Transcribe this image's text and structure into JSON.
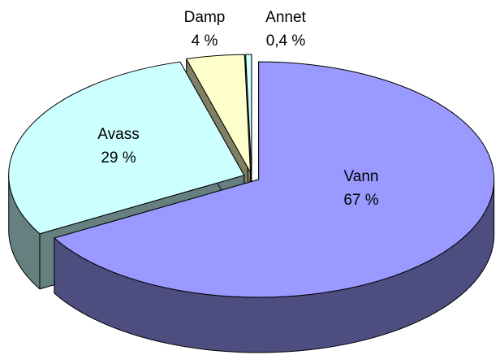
{
  "chart_data": {
    "type": "pie3d",
    "categories": [
      "Vann",
      "Avass",
      "Damp",
      "Annet"
    ],
    "values": [
      67,
      29,
      4,
      0.4
    ],
    "value_labels": [
      "67 %",
      "29 %",
      "4 %",
      "0,4 %"
    ],
    "colors": [
      "#9999ff",
      "#ccffff",
      "#ffffcc",
      "#ccffff"
    ]
  }
}
